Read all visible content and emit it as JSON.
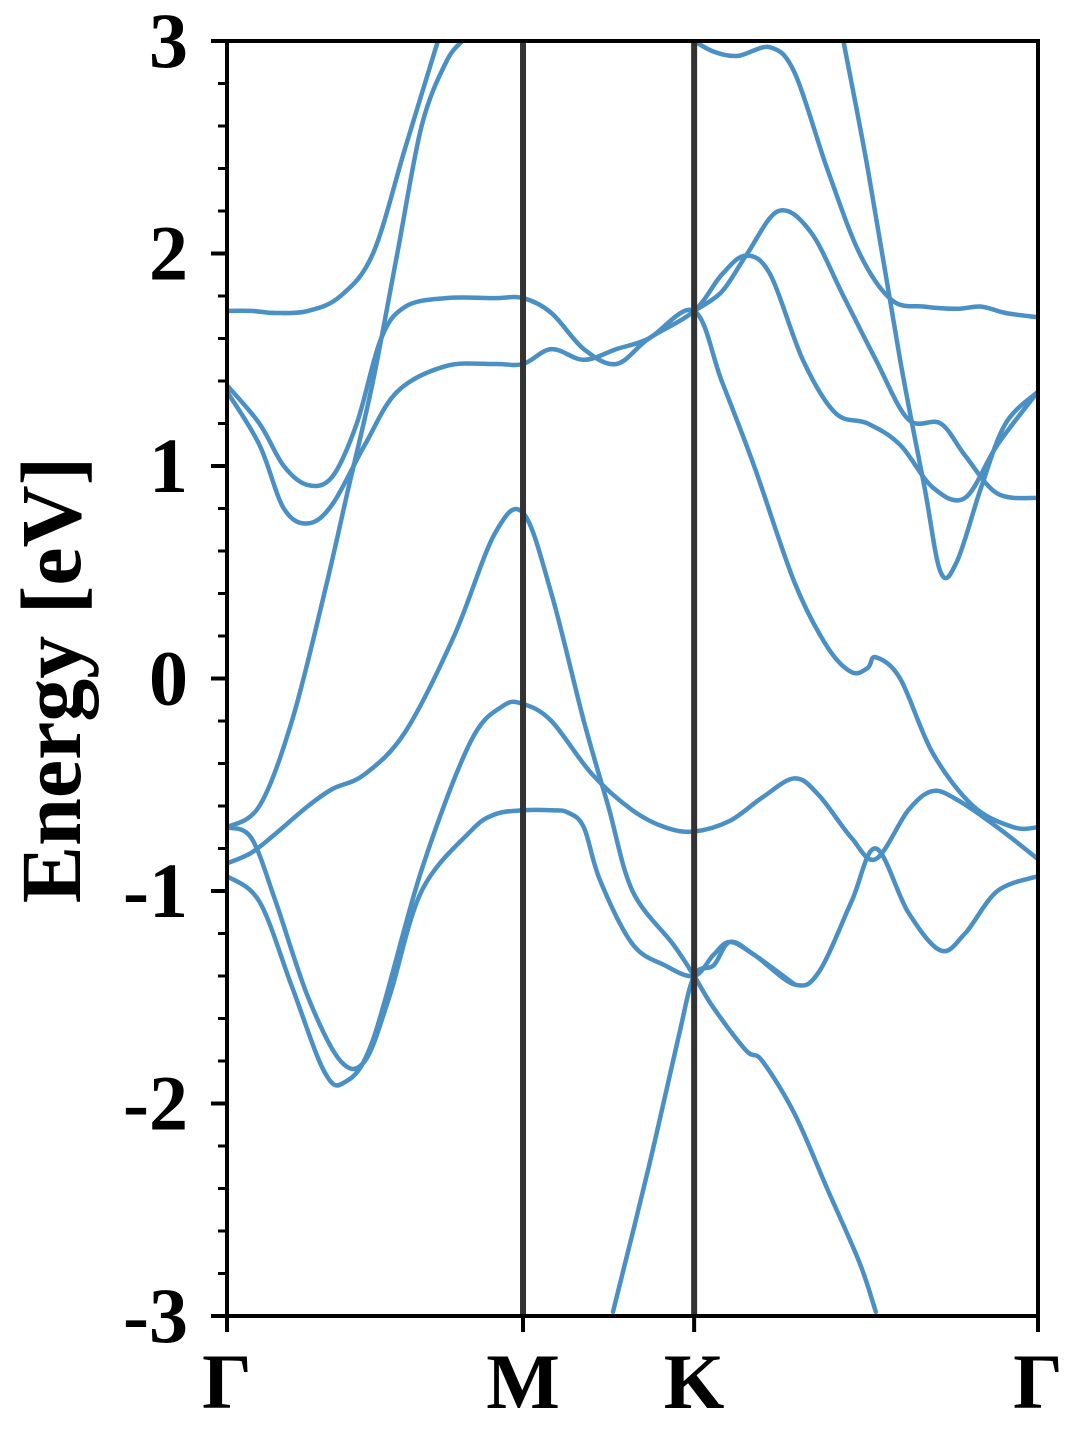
{
  "chart_data": {
    "type": "line",
    "title": "",
    "xlabel": "",
    "ylabel": "Energy [eV]",
    "ylim": [
      -3,
      3
    ],
    "xlim": [
      0,
      1
    ],
    "grid": false,
    "legend": "none",
    "line_color": "#4a90c4",
    "high_symmetry_points": [
      {
        "label": "Γ",
        "x": 0.0
      },
      {
        "label": "M",
        "x": 0.365
      },
      {
        "label": "K",
        "x": 0.576
      },
      {
        "label": "Γ",
        "x": 1.0
      }
    ],
    "y_ticks": [
      3,
      2,
      1,
      0,
      -1,
      -2,
      -3
    ],
    "y_tick_labels": [
      "3",
      "2",
      "1",
      "0",
      "-1",
      "-2",
      "-3"
    ],
    "series": [
      {
        "points": [
          [
            0.0,
            -0.93
          ],
          [
            0.04,
            -1.05
          ],
          [
            0.08,
            -1.45
          ],
          [
            0.12,
            -1.85
          ],
          [
            0.145,
            -1.9
          ],
          [
            0.18,
            -1.7
          ],
          [
            0.24,
            -0.9
          ],
          [
            0.3,
            -0.3
          ],
          [
            0.34,
            -0.13
          ],
          [
            0.365,
            -0.12
          ],
          [
            0.4,
            -0.2
          ],
          [
            0.45,
            -0.45
          ],
          [
            0.5,
            -0.62
          ],
          [
            0.54,
            -0.7
          ],
          [
            0.576,
            -0.72
          ],
          [
            0.62,
            -0.67
          ],
          [
            0.66,
            -0.56
          ],
          [
            0.7,
            -0.47
          ],
          [
            0.73,
            -0.55
          ],
          [
            0.77,
            -0.75
          ],
          [
            0.8,
            -0.85
          ],
          [
            0.84,
            -0.62
          ],
          [
            0.87,
            -0.53
          ],
          [
            0.9,
            -0.57
          ],
          [
            0.95,
            -0.7
          ],
          [
            1.0,
            -0.85
          ]
        ]
      },
      {
        "points": [
          [
            0.0,
            -0.87
          ],
          [
            0.03,
            -0.82
          ],
          [
            0.06,
            -0.73
          ],
          [
            0.1,
            -0.6
          ],
          [
            0.13,
            -0.52
          ],
          [
            0.17,
            -0.45
          ],
          [
            0.22,
            -0.25
          ],
          [
            0.28,
            0.2
          ],
          [
            0.33,
            0.68
          ],
          [
            0.365,
            0.78
          ],
          [
            0.4,
            0.4
          ],
          [
            0.44,
            -0.2
          ],
          [
            0.47,
            -0.6
          ],
          [
            0.5,
            -1.0
          ],
          [
            0.55,
            -1.25
          ],
          [
            0.576,
            -1.4
          ],
          [
            0.6,
            -1.55
          ],
          [
            0.64,
            -1.75
          ],
          [
            0.66,
            -1.8
          ],
          [
            0.7,
            -2.05
          ],
          [
            0.74,
            -2.4
          ],
          [
            0.78,
            -2.75
          ],
          [
            0.8,
            -2.98
          ]
        ]
      },
      {
        "points": [
          [
            0.0,
            -0.7
          ],
          [
            0.03,
            -0.75
          ],
          [
            0.06,
            -1.05
          ],
          [
            0.1,
            -1.5
          ],
          [
            0.14,
            -1.8
          ],
          [
            0.17,
            -1.8
          ],
          [
            0.2,
            -1.5
          ],
          [
            0.24,
            -1.0
          ],
          [
            0.3,
            -0.72
          ],
          [
            0.33,
            -0.64
          ],
          [
            0.365,
            -0.62
          ],
          [
            0.4,
            -0.62
          ],
          [
            0.42,
            -0.63
          ],
          [
            0.44,
            -0.7
          ],
          [
            0.46,
            -0.95
          ],
          [
            0.5,
            -1.25
          ],
          [
            0.54,
            -1.35
          ],
          [
            0.576,
            -1.4
          ],
          [
            0.6,
            -1.3
          ],
          [
            0.62,
            -1.24
          ],
          [
            0.65,
            -1.3
          ],
          [
            0.7,
            -1.44
          ],
          [
            0.73,
            -1.38
          ],
          [
            0.77,
            -1.05
          ],
          [
            0.8,
            -0.8
          ],
          [
            0.84,
            -1.1
          ],
          [
            0.88,
            -1.28
          ],
          [
            0.91,
            -1.2
          ],
          [
            0.95,
            -1.0
          ],
          [
            1.0,
            -0.93
          ]
        ]
      },
      {
        "points": [
          [
            0.0,
            -0.7
          ],
          [
            0.04,
            -0.6
          ],
          [
            0.08,
            -0.2
          ],
          [
            0.12,
            0.4
          ],
          [
            0.15,
            0.9
          ],
          [
            0.18,
            1.4
          ],
          [
            0.21,
            2.0
          ],
          [
            0.24,
            2.6
          ],
          [
            0.27,
            2.9
          ],
          [
            0.29,
            3.0
          ]
        ]
      },
      {
        "points": [
          [
            0.0,
            1.35
          ],
          [
            0.04,
            1.1
          ],
          [
            0.07,
            0.8
          ],
          [
            0.1,
            0.73
          ],
          [
            0.13,
            0.82
          ],
          [
            0.17,
            1.1
          ],
          [
            0.21,
            1.35
          ],
          [
            0.27,
            1.47
          ],
          [
            0.33,
            1.48
          ],
          [
            0.365,
            1.48
          ],
          [
            0.4,
            1.55
          ],
          [
            0.44,
            1.5
          ],
          [
            0.48,
            1.55
          ],
          [
            0.52,
            1.6
          ],
          [
            0.576,
            1.73
          ],
          [
            0.61,
            1.4
          ],
          [
            0.65,
            1.0
          ],
          [
            0.7,
            0.45
          ],
          [
            0.74,
            0.15
          ],
          [
            0.77,
            0.03
          ],
          [
            0.79,
            0.05
          ],
          [
            0.8,
            0.1
          ],
          [
            0.83,
            0.0
          ],
          [
            0.87,
            -0.35
          ],
          [
            0.92,
            -0.6
          ],
          [
            0.97,
            -0.7
          ],
          [
            1.0,
            -0.7
          ]
        ]
      },
      {
        "points": [
          [
            0.0,
            1.38
          ],
          [
            0.04,
            1.2
          ],
          [
            0.07,
            1.0
          ],
          [
            0.1,
            0.91
          ],
          [
            0.13,
            0.95
          ],
          [
            0.16,
            1.2
          ],
          [
            0.19,
            1.6
          ],
          [
            0.22,
            1.75
          ],
          [
            0.27,
            1.79
          ],
          [
            0.33,
            1.79
          ],
          [
            0.365,
            1.79
          ],
          [
            0.4,
            1.72
          ],
          [
            0.44,
            1.55
          ],
          [
            0.48,
            1.48
          ],
          [
            0.52,
            1.6
          ],
          [
            0.576,
            1.73
          ],
          [
            0.61,
            1.9
          ],
          [
            0.64,
            1.99
          ],
          [
            0.67,
            1.9
          ],
          [
            0.71,
            1.5
          ],
          [
            0.75,
            1.25
          ],
          [
            0.79,
            1.2
          ],
          [
            0.83,
            1.1
          ],
          [
            0.87,
            0.9
          ],
          [
            0.91,
            0.85
          ],
          [
            0.95,
            1.1
          ],
          [
            1.0,
            1.35
          ]
        ]
      },
      {
        "points": [
          [
            0.0,
            1.73
          ],
          [
            0.03,
            1.73
          ],
          [
            0.06,
            1.72
          ],
          [
            0.1,
            1.73
          ],
          [
            0.14,
            1.8
          ],
          [
            0.18,
            2.0
          ],
          [
            0.22,
            2.5
          ],
          [
            0.26,
            3.0
          ]
        ]
      },
      {
        "points": [
          [
            0.576,
            3.0
          ],
          [
            0.6,
            2.95
          ],
          [
            0.63,
            2.93
          ],
          [
            0.67,
            2.97
          ],
          [
            0.7,
            2.85
          ],
          [
            0.74,
            2.4
          ],
          [
            0.78,
            2.0
          ],
          [
            0.82,
            1.78
          ],
          [
            0.86,
            1.75
          ],
          [
            0.9,
            1.74
          ],
          [
            0.93,
            1.75
          ],
          [
            0.96,
            1.72
          ],
          [
            1.0,
            1.7
          ]
        ]
      },
      {
        "points": [
          [
            0.476,
            -2.98
          ],
          [
            0.52,
            -2.3
          ],
          [
            0.556,
            -1.7
          ],
          [
            0.576,
            -1.4
          ],
          [
            0.6,
            -1.35
          ],
          [
            0.62,
            -1.24
          ],
          [
            0.65,
            -1.3
          ],
          [
            0.7,
            -1.44
          ]
        ]
      },
      {
        "points": [
          [
            0.76,
            3.0
          ],
          [
            0.79,
            2.4
          ],
          [
            0.83,
            1.5
          ],
          [
            0.86,
            0.9
          ],
          [
            0.88,
            0.5
          ],
          [
            0.9,
            0.55
          ],
          [
            0.93,
            0.9
          ],
          [
            0.96,
            1.2
          ],
          [
            1.0,
            1.35
          ]
        ]
      },
      {
        "points": [
          [
            0.576,
            1.73
          ],
          [
            0.61,
            1.82
          ],
          [
            0.64,
            1.99
          ],
          [
            0.68,
            2.2
          ],
          [
            0.72,
            2.1
          ],
          [
            0.76,
            1.8
          ],
          [
            0.8,
            1.5
          ],
          [
            0.84,
            1.22
          ],
          [
            0.88,
            1.2
          ],
          [
            0.91,
            1.05
          ],
          [
            0.95,
            0.87
          ],
          [
            1.0,
            0.85
          ]
        ]
      }
    ]
  }
}
